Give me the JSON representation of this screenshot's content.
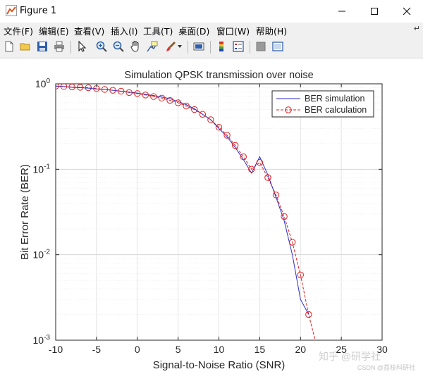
{
  "window": {
    "title": "Figure 1",
    "minimize_icon": "minimize-icon",
    "maximize_icon": "maximize-icon",
    "close_icon": "close-icon"
  },
  "menu": [
    {
      "label": "文件(F)"
    },
    {
      "label": "编辑(E)"
    },
    {
      "label": "查看(V)"
    },
    {
      "label": "插入(I)"
    },
    {
      "label": "工具(T)"
    },
    {
      "label": "桌面(D)"
    },
    {
      "label": "窗口(W)"
    },
    {
      "label": "帮助(H)"
    }
  ],
  "menu_overflow_icon": "dock-arrow-icon",
  "toolbar": [
    "new-figure-icon",
    "open-icon",
    "save-icon",
    "print-icon",
    "pointer-icon",
    "zoom-in-icon",
    "zoom-out-icon",
    "pan-icon",
    "data-cursor-icon",
    "brush-icon",
    "brush-dropdown-icon",
    "link-plot-icon",
    "colorbar-icon",
    "legend-icon",
    "hide-plot-tools-icon",
    "show-plot-tools-icon"
  ],
  "colors": {
    "simulation": "#2a2ac8",
    "calculation": "#e02020",
    "axes": "#262626",
    "grid": "#e3e3e3"
  },
  "watermark": {
    "line1": "知乎 @研学社",
    "line2": "CSDN @荔枝科研社"
  },
  "chart_data": {
    "type": "line",
    "title": "Simulation QPSK transmission over noise",
    "xlabel": "Signal-to-Noise Ratio (SNR)",
    "ylabel": "Bit Error Rate (BER)",
    "xlim": [
      -10,
      30
    ],
    "ylim": [
      0.001,
      1
    ],
    "yscale": "log",
    "grid": true,
    "legend_position": "top-right",
    "x_ticks": [
      "-10",
      "-5",
      "0",
      "5",
      "10",
      "15",
      "20",
      "25",
      "30"
    ],
    "y_ticks": [
      "10^0",
      "10^-1",
      "10^-2",
      "10^-3"
    ],
    "series": [
      {
        "name": "BER simulation",
        "style": "line",
        "x": [
          -10,
          -9,
          -8,
          -7,
          -6,
          -5,
          -4,
          -3,
          -2,
          -1,
          0,
          1,
          2,
          3,
          4,
          5,
          6,
          7,
          8,
          9,
          10,
          11,
          12,
          13,
          14,
          15,
          16,
          17,
          18,
          19,
          20,
          21
        ],
        "y": [
          0.94,
          0.93,
          0.91,
          0.9,
          0.89,
          0.87,
          0.86,
          0.84,
          0.82,
          0.8,
          0.78,
          0.75,
          0.73,
          0.7,
          0.67,
          0.62,
          0.57,
          0.51,
          0.44,
          0.38,
          0.3,
          0.24,
          0.18,
          0.13,
          0.09,
          0.14,
          0.086,
          0.047,
          0.025,
          0.01,
          0.003,
          0.002
        ]
      },
      {
        "name": "BER calculation",
        "style": "line-circle",
        "x": [
          -10,
          -9,
          -8,
          -7,
          -6,
          -5,
          -4,
          -3,
          -2,
          -1,
          0,
          1,
          2,
          3,
          4,
          5,
          6,
          7,
          8,
          9,
          10,
          11,
          12,
          13,
          14,
          15,
          16,
          17,
          18,
          19,
          20,
          21,
          21.8
        ],
        "y": [
          0.94,
          0.93,
          0.92,
          0.91,
          0.9,
          0.88,
          0.86,
          0.84,
          0.82,
          0.79,
          0.77,
          0.74,
          0.71,
          0.68,
          0.64,
          0.6,
          0.55,
          0.5,
          0.44,
          0.38,
          0.31,
          0.25,
          0.19,
          0.14,
          0.1,
          0.12,
          0.08,
          0.05,
          0.028,
          0.014,
          0.0058,
          0.002,
          0.001
        ]
      }
    ]
  }
}
